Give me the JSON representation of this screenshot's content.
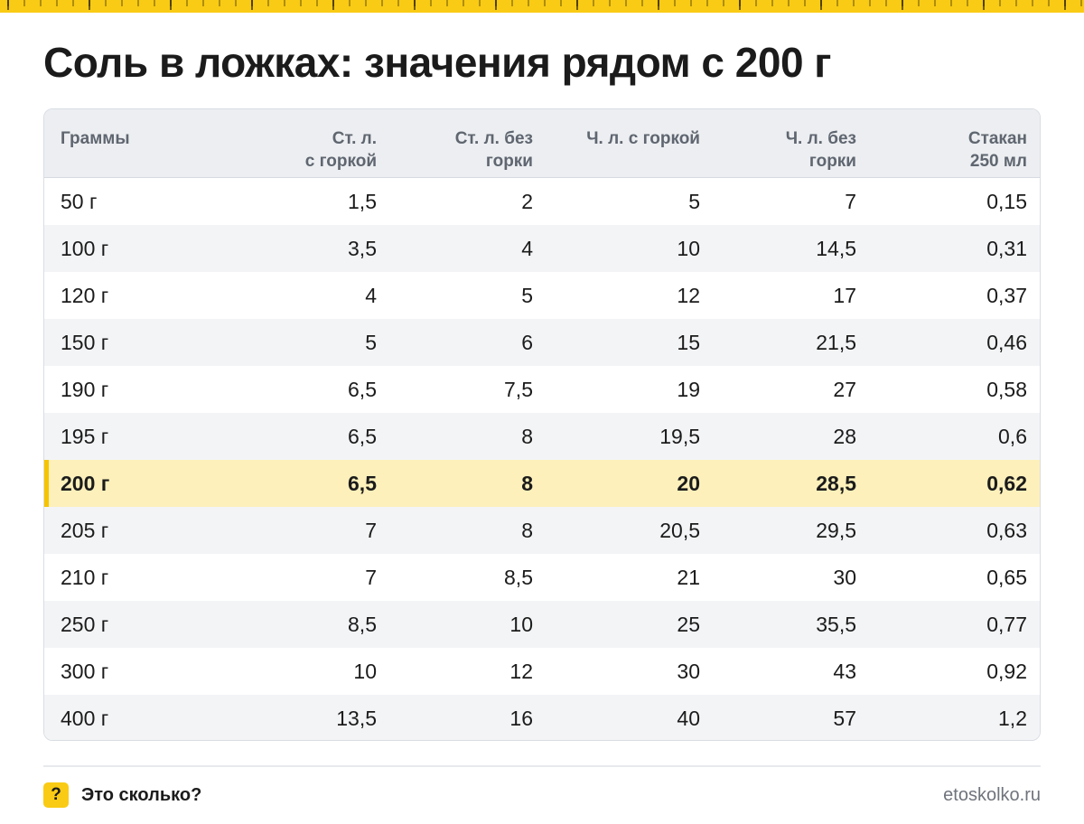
{
  "title": "Соль в ложках: значения рядом с 200 г",
  "colors": {
    "accent": "#f9cb14",
    "highlight_row": "#fdf0bb",
    "header_bg": "#eceef1",
    "stripe": "#f3f4f6"
  },
  "table": {
    "headers": [
      "Граммы",
      "Ст. л.\nс горкой",
      "Ст. л. без\nгорки",
      "Ч. л. с горкой",
      "Ч. л. без\nгорки",
      "Стакан\n250 мл"
    ],
    "highlight_row_index": 6,
    "rows": [
      [
        "50 г",
        "1,5",
        "2",
        "5",
        "7",
        "0,15"
      ],
      [
        "100 г",
        "3,5",
        "4",
        "10",
        "14,5",
        "0,31"
      ],
      [
        "120 г",
        "4",
        "5",
        "12",
        "17",
        "0,37"
      ],
      [
        "150 г",
        "5",
        "6",
        "15",
        "21,5",
        "0,46"
      ],
      [
        "190 г",
        "6,5",
        "7,5",
        "19",
        "27",
        "0,58"
      ],
      [
        "195 г",
        "6,5",
        "8",
        "19,5",
        "28",
        "0,6"
      ],
      [
        "200 г",
        "6,5",
        "8",
        "20",
        "28,5",
        "0,62"
      ],
      [
        "205 г",
        "7",
        "8",
        "20,5",
        "29,5",
        "0,63"
      ],
      [
        "210 г",
        "7",
        "8,5",
        "21",
        "30",
        "0,65"
      ],
      [
        "250 г",
        "8,5",
        "10",
        "25",
        "35,5",
        "0,77"
      ],
      [
        "300 г",
        "10",
        "12",
        "30",
        "43",
        "0,92"
      ],
      [
        "400 г",
        "13,5",
        "16",
        "40",
        "57",
        "1,2"
      ]
    ]
  },
  "footer": {
    "icon": "question-mark-icon",
    "icon_glyph": "?",
    "brand": "Это сколько?",
    "site": "etoskolko.ru"
  }
}
